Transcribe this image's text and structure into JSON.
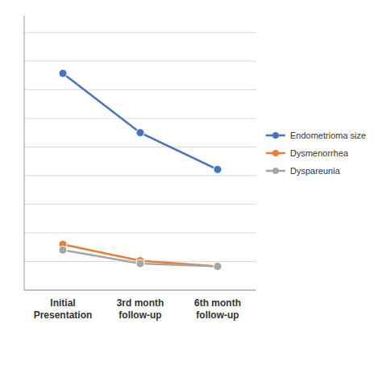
{
  "chart_data": {
    "type": "line",
    "categories": [
      "Initial\nPresentation",
      "3rd month\nfollow-up",
      "6th month\nfollow-up"
    ],
    "series": [
      {
        "name": "Endometrioma size",
        "color": "#4472C4",
        "marker": "circle",
        "values": [
          5.8,
          4.35,
          3.45
        ]
      },
      {
        "name": "Dysmenorrhea",
        "color": "#ED7D31",
        "marker": "circle",
        "values": [
          1.62,
          1.22,
          1.08
        ]
      },
      {
        "name": "Dyspareunia",
        "color": "#A5A5A5",
        "marker": "circle",
        "values": [
          1.48,
          1.15,
          1.08
        ]
      }
    ],
    "ylim": [
      0.5,
      7.2
    ],
    "yticks": [
      0.5,
      1.2,
      1.9,
      2.6,
      3.3,
      4.0,
      4.7,
      5.4,
      6.1,
      6.8
    ],
    "grid": true,
    "legend": "right",
    "tick_labels": "x"
  }
}
